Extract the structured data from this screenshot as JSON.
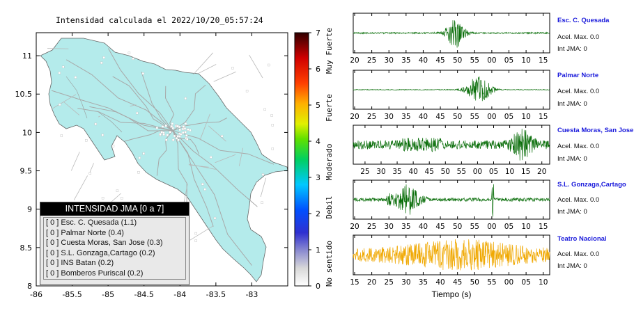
{
  "map": {
    "title": "Intensidad calculada el 2022/10/20_05:57:24",
    "x_ticks": [
      "-86",
      "-85.5",
      "-85",
      "-84.5",
      "-84",
      "-83.5",
      "-83"
    ],
    "y_ticks": [
      "11",
      "10.5",
      "10",
      "9.5",
      "9",
      "8.5",
      "8"
    ]
  },
  "colorbar": {
    "ticks": [
      "7",
      "6",
      "5",
      "4",
      "3",
      "2",
      "1",
      "0"
    ],
    "labels": [
      "Muy Fuerte",
      "Fuerte",
      "Moderado",
      "Debil",
      "No sentido"
    ]
  },
  "legend": {
    "title": "INTENSIDAD JMA [0 a 7]",
    "items": [
      "[ 0 ]  Esc. C. Quesada (1.1)",
      "[ 0 ]  Palmar Norte (0.4)",
      "[ 0 ]  Cuesta Moras, San Jose (0.3)",
      "[ 0 ]  S.L. Gonzaga,Cartago (0.2)",
      "[ 0 ]  INS Batan (0.2)",
      "[ 0 ]  Bomberos Puriscal (0.2)"
    ]
  },
  "colors": {
    "trace_green": "#0a6e0a",
    "trace_orange": "#f0a800",
    "station_blue": "#1a1adb",
    "land": "#b4ebeb"
  },
  "seismograms": {
    "xlabel": "Tiempo (s)",
    "stations": [
      {
        "name": "Esc. C. Quesada",
        "acel": "Acel. Max. 0.0",
        "jma": "Int JMA: 0",
        "ticks": [
          "20",
          "25",
          "30",
          "35",
          "40",
          "45",
          "50",
          "55",
          "00",
          "05",
          "10",
          "15"
        ],
        "color": "green"
      },
      {
        "name": "Palmar Norte",
        "acel": "Acel. Max. 0.0",
        "jma": "Int JMA: 0",
        "ticks": [
          "20",
          "25",
          "30",
          "35",
          "40",
          "45",
          "50",
          "55",
          "00",
          "05",
          "10",
          "15"
        ],
        "color": "green"
      },
      {
        "name": "Cuesta Moras, San Jose",
        "acel": "Acel. Max. 0.0",
        "jma": "Int JMA: 0",
        "ticks": [
          "25",
          "30",
          "35",
          "40",
          "45",
          "50",
          "55",
          "00",
          "05",
          "10",
          "15",
          "20"
        ],
        "color": "green"
      },
      {
        "name": "S.L. Gonzaga,Cartago",
        "acel": "Acel. Max. 0.0",
        "jma": "Int JMA: 0",
        "ticks": [
          "20",
          "25",
          "30",
          "35",
          "40",
          "45",
          "50",
          "55",
          "00",
          "05",
          "10",
          "15"
        ],
        "color": "green"
      },
      {
        "name": "Teatro Nacional",
        "acel": "Acel. Max. 0.0",
        "jma": "Int JMA: 0",
        "ticks": [
          "15",
          "20",
          "25",
          "30",
          "35",
          "40",
          "45",
          "50",
          "55",
          "00",
          "05",
          "10"
        ],
        "color": "orange"
      }
    ]
  },
  "chart_data": [
    {
      "type": "heatmap",
      "title": "Intensidad calculada el 2022/10/20_05:57:24",
      "xlabel": "",
      "ylabel": "",
      "xlim": [
        -86,
        -82.5
      ],
      "ylim": [
        8,
        11.3
      ],
      "colorbar_range": [
        0,
        7
      ],
      "note_values": [
        {
          "station": "Esc. C. Quesada",
          "intensity": 1.1
        },
        {
          "station": "Palmar Norte",
          "intensity": 0.4
        },
        {
          "station": "Cuesta Moras, San Jose",
          "intensity": 0.3
        },
        {
          "station": "S.L. Gonzaga,Cartago",
          "intensity": 0.2
        },
        {
          "station": "INS Batan",
          "intensity": 0.2
        },
        {
          "station": "Bomberos Puriscal",
          "intensity": 0.2
        }
      ]
    },
    {
      "type": "line",
      "xlabel": "Tiempo (s)",
      "series": [
        {
          "name": "Esc. C. Quesada",
          "peak_x": "52"
        },
        {
          "name": "Palmar Norte",
          "peak_x": "57"
        },
        {
          "name": "Cuesta Moras, San Jose",
          "peak_x": "12"
        },
        {
          "name": "S.L. Gonzaga,Cartago",
          "peak_x": "59"
        },
        {
          "name": "Teatro Nacional",
          "peak_x": "47"
        }
      ]
    }
  ]
}
